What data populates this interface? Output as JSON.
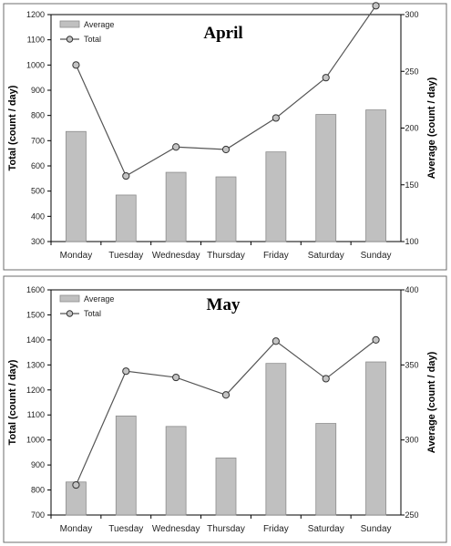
{
  "chart_data": [
    {
      "type": "bar",
      "title": "April",
      "categories": [
        "Monday",
        "Tuesday",
        "Wednesday",
        "Thursday",
        "Friday",
        "Saturday",
        "Sunday"
      ],
      "ylabel": "Total (count / day)",
      "y2label": "Average (count / day)",
      "ylim": [
        300,
        1200
      ],
      "yticks": [
        300,
        400,
        500,
        600,
        700,
        800,
        900,
        1000,
        1100,
        1200
      ],
      "y2lim": [
        100,
        300
      ],
      "y2ticks": [
        100,
        150,
        200,
        250,
        300
      ],
      "series": [
        {
          "name": "Average",
          "kind": "bar",
          "axis": "right",
          "color": "#c0c0c0",
          "values": [
            197,
            141,
            161,
            157,
            179,
            212,
            216
          ]
        },
        {
          "name": "Total",
          "kind": "line",
          "axis": "left",
          "color": "#555555",
          "values": [
            1000,
            560,
            675,
            665,
            790,
            950,
            1235
          ]
        }
      ],
      "legend": "top-left",
      "grid": false
    },
    {
      "type": "bar",
      "title": "May",
      "categories": [
        "Monday",
        "Tuesday",
        "Wednesday",
        "Thursday",
        "Friday",
        "Saturday",
        "Sunday"
      ],
      "ylabel": "Total (count / day)",
      "y2label": "Average (count / day)",
      "ylim": [
        700,
        1600
      ],
      "yticks": [
        700,
        800,
        900,
        1000,
        1100,
        1200,
        1300,
        1400,
        1500,
        1600
      ],
      "y2lim": [
        250,
        400
      ],
      "y2ticks": [
        250,
        300,
        350,
        400
      ],
      "series": [
        {
          "name": "Average",
          "kind": "bar",
          "axis": "right",
          "color": "#c0c0c0",
          "values": [
            272,
            316,
            309,
            288,
            351,
            311,
            352
          ]
        },
        {
          "name": "Total",
          "kind": "line",
          "axis": "left",
          "color": "#555555",
          "values": [
            820,
            1275,
            1250,
            1180,
            1395,
            1245,
            1400
          ]
        }
      ],
      "legend": "top-left",
      "grid": false
    }
  ]
}
